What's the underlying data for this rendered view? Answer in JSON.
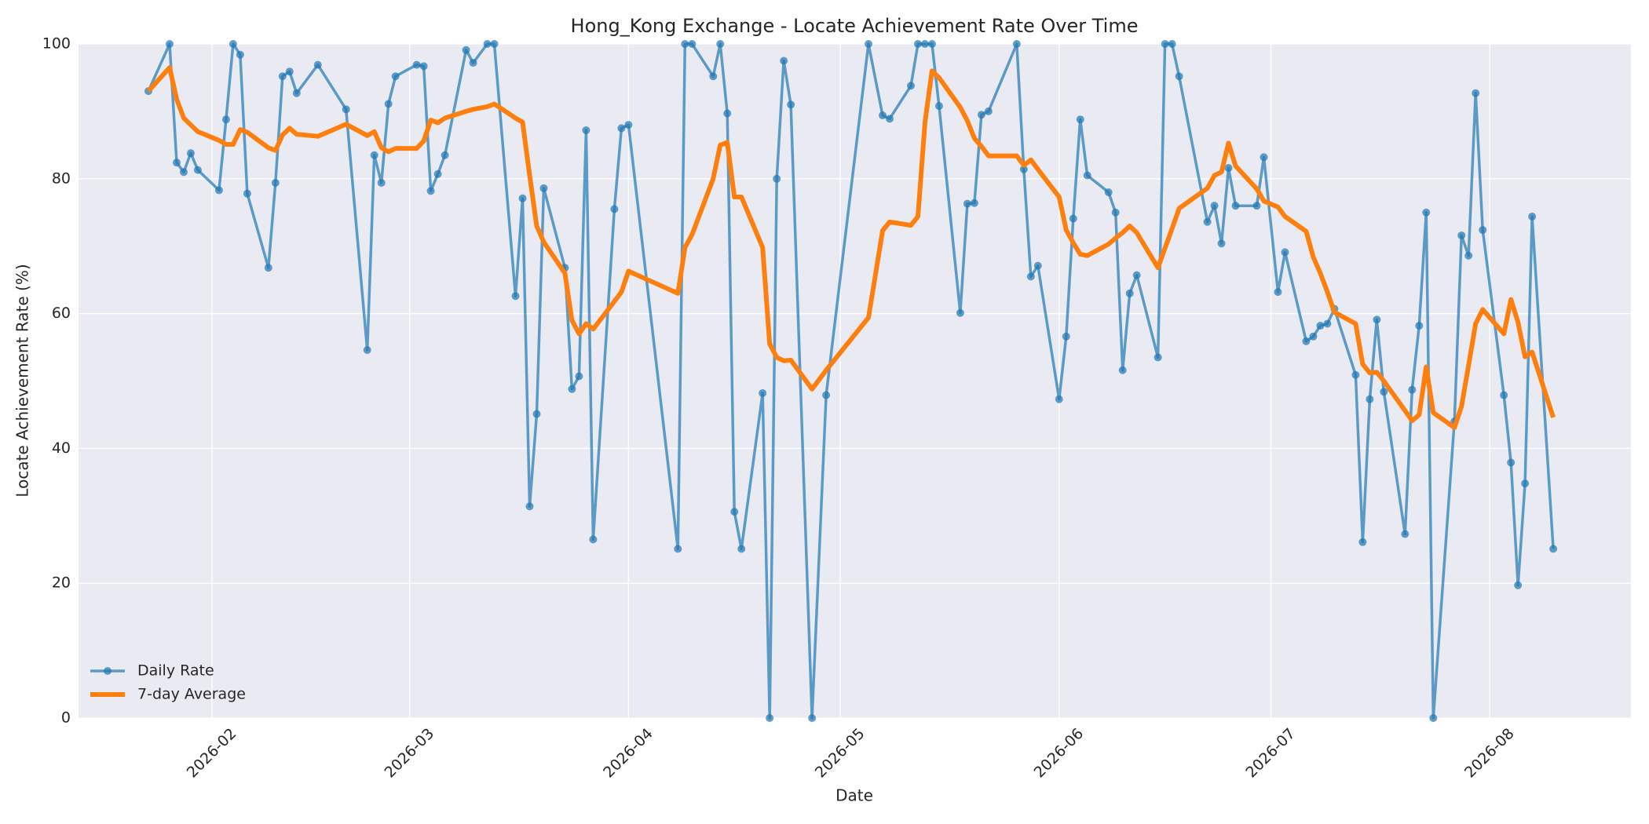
{
  "chart_data": {
    "type": "line",
    "title": "Hong_Kong Exchange - Locate Achievement Rate Over Time",
    "x_label": "Date",
    "y_label": "Locate Achievement Rate (%)",
    "x": [
      23,
      26,
      27,
      28,
      29,
      30,
      33,
      34,
      35,
      36,
      37,
      40,
      41,
      42,
      43,
      44,
      47,
      51,
      54,
      55,
      56,
      57,
      58,
      61,
      62,
      63,
      64,
      65,
      68,
      69,
      71,
      72,
      75,
      76,
      77,
      78,
      79,
      82,
      83,
      84,
      85,
      86,
      89,
      90,
      91,
      98,
      99,
      100,
      103,
      104,
      105,
      106,
      107,
      110,
      111,
      112,
      113,
      114,
      117,
      119,
      125,
      127,
      128,
      131,
      132,
      133,
      134,
      135,
      138,
      139,
      140,
      141,
      142,
      146,
      147,
      148,
      149,
      152,
      153,
      154,
      155,
      156,
      159,
      160,
      161,
      162,
      163,
      166,
      167,
      168,
      169,
      173,
      174,
      175,
      176,
      177,
      180,
      181,
      183,
      184,
      187,
      188,
      189,
      190,
      191,
      194,
      195,
      196,
      197,
      198,
      201,
      202,
      203,
      204,
      205,
      208,
      209,
      210,
      211,
      212,
      215,
      216,
      217,
      218,
      219,
      222
    ],
    "series": [
      {
        "name": "Daily Rate",
        "color": "#1f77b4",
        "marker": true,
        "values": [
          93,
          100,
          82.4,
          81,
          83.8,
          81.3,
          78.3,
          88.8,
          100,
          98.4,
          77.8,
          66.8,
          79.4,
          95.2,
          95.9,
          92.7,
          96.9,
          90.3,
          54.6,
          83.5,
          79.4,
          91.1,
          95.2,
          96.9,
          96.7,
          78.2,
          80.7,
          83.5,
          99.1,
          97.2,
          100,
          100,
          62.6,
          77.1,
          31.4,
          45.1,
          78.6,
          66.8,
          48.8,
          50.7,
          87.2,
          26.5,
          75.5,
          87.5,
          88,
          25.1,
          100,
          100,
          95.2,
          100,
          89.7,
          30.6,
          25.1,
          48.2,
          0,
          80,
          97.5,
          91,
          0,
          47.9,
          100,
          89.4,
          88.9,
          93.8,
          100,
          100,
          100,
          90.8,
          60.1,
          76.3,
          76.4,
          89.5,
          90,
          100,
          81.4,
          65.5,
          67.1,
          47.3,
          56.6,
          74.1,
          88.8,
          80.5,
          78,
          75,
          51.6,
          63,
          65.7,
          53.5,
          100,
          100,
          95.2,
          73.6,
          76,
          70.4,
          81.6,
          76,
          76,
          83.2,
          63.2,
          69.1,
          55.9,
          56.6,
          58.2,
          58.5,
          60.7,
          50.9,
          26.1,
          47.3,
          59.1,
          48.4,
          27.3,
          48.7,
          58.2,
          75,
          0,
          44,
          71.6,
          68.6,
          92.7,
          72.4,
          47.9,
          37.9,
          19.7,
          34.8,
          74.4,
          25.1
        ]
      },
      {
        "name": "7-day Average",
        "color": "#ff7f0e",
        "marker": false,
        "values": [
          93,
          96.5,
          91.8,
          89,
          88,
          87,
          85.7,
          85.1,
          85.1,
          87.3,
          86.9,
          84.6,
          84.2,
          86.5,
          87.5,
          86.6,
          86.3,
          88.1,
          86.4,
          87,
          84.6,
          84,
          84.5,
          84.5,
          85.6,
          88.7,
          88.3,
          89,
          90,
          90.3,
          90.7,
          91.1,
          89,
          88.4,
          80.5,
          73,
          70.6,
          66,
          59,
          57,
          58.5,
          57.7,
          61.8,
          63.2,
          66.3,
          63,
          69.8,
          71.7,
          80,
          85,
          85.4,
          77.3,
          77.3,
          69.8,
          55.5,
          53.5,
          53,
          53.1,
          48.8,
          51.6,
          59.4,
          72.3,
          73.6,
          73.1,
          74.4,
          88.4,
          96,
          95,
          90.6,
          88.6,
          86,
          84.8,
          83.4,
          83.4,
          82,
          82.8,
          81.4,
          77.3,
          72.4,
          70.5,
          68.8,
          68.6,
          70.3,
          71.2,
          72,
          73,
          72,
          66.8,
          69.7,
          72.6,
          75.6,
          78.6,
          80.5,
          81,
          85.3,
          81.9,
          78.5,
          76.7,
          75.8,
          74.4,
          72.2,
          68.4,
          66,
          63.2,
          60.2,
          58.5,
          52.5,
          51.2,
          51.3,
          50,
          45.6,
          44.1,
          45,
          52.1,
          45.3,
          43.1,
          46.2,
          52.3,
          58.5,
          60.6,
          57,
          62.1,
          58.7,
          53.6,
          54.3,
          44.6
        ]
      }
    ],
    "xlim": [
      13.1,
      233
    ],
    "xticks": [
      {
        "value": 32,
        "label": "2026-02"
      },
      {
        "value": 60,
        "label": "2026-03"
      },
      {
        "value": 91,
        "label": "2026-04"
      },
      {
        "value": 121,
        "label": "2026-05"
      },
      {
        "value": 152,
        "label": "2026-06"
      },
      {
        "value": 182,
        "label": "2026-07"
      },
      {
        "value": 213,
        "label": "2026-08"
      }
    ],
    "ylim": [
      0,
      100
    ],
    "yticks": [
      0,
      20,
      40,
      60,
      80,
      100
    ],
    "grid": true,
    "legend": "lower left"
  }
}
